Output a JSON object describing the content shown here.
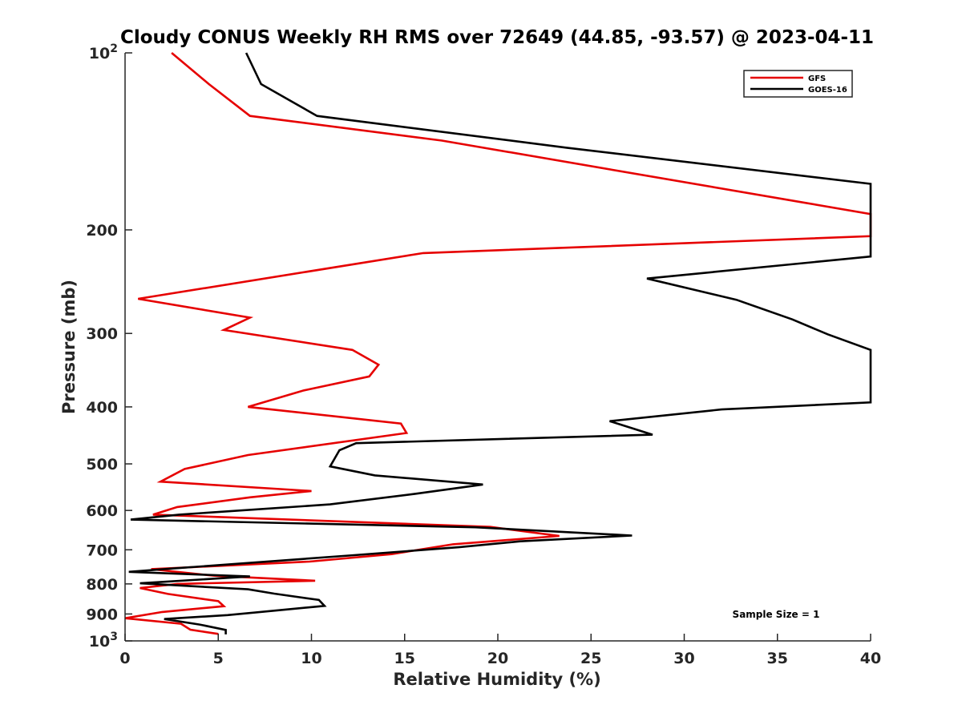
{
  "chart_data": {
    "type": "line",
    "title": "Cloudy CONUS Weekly RH RMS over 72649 (44.85, -93.57) @ 2023-04-11",
    "xlabel": "Relative Humidity (%)",
    "ylabel": "Pressure (mb)",
    "xlim": [
      0,
      40
    ],
    "ylim": [
      100,
      1000
    ],
    "y_scale": "log",
    "y_reversed": true,
    "x_ticks": [
      "0",
      "5",
      "10",
      "15",
      "20",
      "25",
      "30",
      "35",
      "40"
    ],
    "y_ticks": [
      {
        "value": 100,
        "base": "10",
        "exp": "2"
      },
      {
        "value": 200,
        "label": "200"
      },
      {
        "value": 300,
        "label": "300"
      },
      {
        "value": 400,
        "label": "400"
      },
      {
        "value": 500,
        "label": "500"
      },
      {
        "value": 600,
        "label": "600"
      },
      {
        "value": 700,
        "label": "700"
      },
      {
        "value": 800,
        "label": "800"
      },
      {
        "value": 900,
        "label": "900"
      },
      {
        "value": 1000,
        "base": "10",
        "exp": "3"
      }
    ],
    "grid": false,
    "legend_position": "top-right",
    "annotation": "Sample Size = 1",
    "series": [
      {
        "name": "GFS",
        "color": "#e60000",
        "x": [
          2.5,
          4.5,
          6.7,
          17.0,
          40.0,
          40.0,
          16.0,
          0.7,
          6.7,
          5.3,
          12.2,
          13.6,
          13.1,
          9.6,
          6.6,
          14.8,
          15.1,
          6.6,
          3.2,
          1.9,
          10.0,
          6.7,
          2.8,
          1.5,
          19.6,
          23.3,
          17.6,
          14.3,
          9.9,
          1.4,
          4.8,
          10.2,
          2.8,
          0.8,
          2.3,
          5.0,
          5.3,
          2.0,
          0.0,
          3.0,
          3.5,
          5.0
        ],
        "y": [
          100,
          113,
          128,
          141,
          188,
          205,
          219,
          262,
          282,
          296,
          320,
          339,
          355,
          375,
          400,
          427,
          443,
          483,
          510,
          536,
          556,
          570,
          592,
          610,
          640,
          663,
          685,
          712,
          733,
          755,
          775,
          790,
          800,
          813,
          832,
          856,
          873,
          893,
          915,
          935,
          957,
          973
        ]
      },
      {
        "name": "GOES-16",
        "color": "#000000",
        "x": [
          6.5,
          7.3,
          10.3,
          23.7,
          40.0,
          40.0,
          28.0,
          32.8,
          35.8,
          37.7,
          40.0,
          40.0,
          32.0,
          26.0,
          28.3,
          12.4,
          11.5,
          11.0,
          13.4,
          19.2,
          15.6,
          11.0,
          2.9,
          0.3,
          18.8,
          27.2,
          21.2,
          17.9,
          12.0,
          2.6,
          0.2,
          6.7,
          0.8,
          6.6,
          8.0,
          10.4,
          10.7,
          8.1,
          5.5,
          2.1,
          4.0,
          5.4,
          5.4
        ],
        "y": [
          100,
          113,
          128,
          145,
          167,
          222,
          242,
          263,
          284,
          301,
          320,
          393,
          404,
          423,
          446,
          461,
          474,
          505,
          523,
          542,
          562,
          586,
          610,
          622,
          641,
          662,
          677,
          693,
          716,
          753,
          763,
          777,
          798,
          817,
          831,
          852,
          872,
          888,
          904,
          918,
          938,
          958,
          975
        ]
      }
    ]
  }
}
